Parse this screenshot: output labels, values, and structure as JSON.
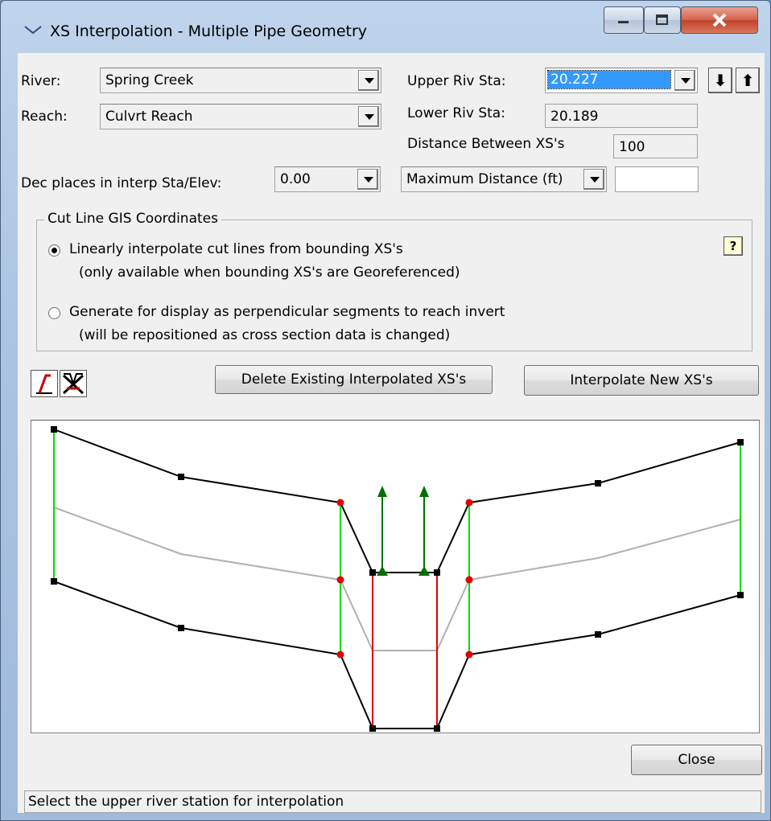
{
  "window": {
    "title": "XS Interpolation  - Multiple Pipe Geometry"
  },
  "river": {
    "label": "River:",
    "value": "Spring Creek"
  },
  "reach": {
    "label": "Reach:",
    "value": "Culvrt Reach"
  },
  "upper_riv_sta": {
    "label": "Upper Riv Sta:",
    "value": "20.227"
  },
  "lower_riv_sta": {
    "label": "Lower Riv Sta:",
    "value": "20.189"
  },
  "distance": {
    "label": "Distance Between XS's",
    "value": "100"
  },
  "dec_places": {
    "label": "Dec places in interp Sta/Elev:",
    "value": "0.00"
  },
  "max_distance": {
    "label": "Maximum Distance (ft)",
    "value": ""
  },
  "cut_line": {
    "group_title": "Cut Line GIS Coordinates",
    "option1_line1": "Linearly interpolate cut lines from bounding XS's",
    "option1_line2": "(only available when bounding XS's are Georeferenced)",
    "option2_line1": "Generate for display as perpendicular segments to reach invert",
    "option2_line2": "(will be repositioned as cross section data is changed)",
    "selected_option": 1
  },
  "buttons": {
    "delete": "Delete Existing Interpolated XS's",
    "interpolate": "Interpolate New XS's",
    "close": "Close",
    "down_arrow": "⬇",
    "up_arrow": "⬆",
    "help": "?"
  },
  "status": "Select the upper river station for interpolation",
  "colors": {
    "xs_line": "#000000",
    "master_cord": "#00e000",
    "culvert_wall": "#e00000",
    "interpolated": "#b0b0b0",
    "arrow": "#007000",
    "selection": "#3399ff"
  },
  "icons": [
    "window-menu-icon",
    "minimize-icon",
    "maximize-icon",
    "close-icon",
    "down-arrow-icon",
    "up-arrow-icon",
    "help-icon",
    "edit-master-cord-icon",
    "delete-master-cord-icon"
  ]
}
